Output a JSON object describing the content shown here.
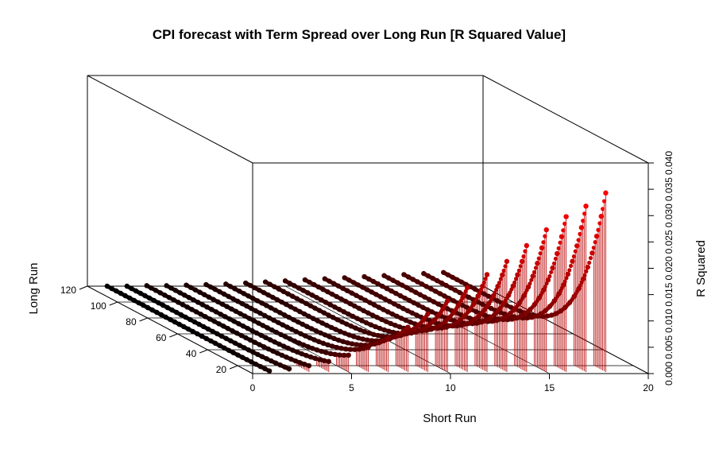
{
  "chart_data": {
    "type": "scatter3d",
    "title": "CPI forecast with Term Spread over Long Run [R Squared Value]",
    "xlabel": "Short Run",
    "ylabel": "Long Run",
    "zlabel": "R Squared",
    "xlim": [
      0,
      20
    ],
    "ylim": [
      10,
      120
    ],
    "zlim": [
      0,
      0.04
    ],
    "x_ticks": [
      "0",
      "5",
      "10",
      "15",
      "20"
    ],
    "y_ticks": [
      "20",
      "40",
      "60",
      "80",
      "100",
      "120"
    ],
    "z_ticks": [
      "0.000",
      "0.005",
      "0.010",
      "0.015",
      "0.020",
      "0.025",
      "0.030",
      "0.035",
      "0.040"
    ],
    "short_run_values": [
      1,
      2,
      3,
      4,
      5,
      6,
      7,
      8,
      9,
      10,
      11,
      12,
      13,
      14,
      15,
      16,
      17,
      18
    ],
    "long_run_range": [
      12,
      120
    ],
    "r_squared_at_long_run_12": [
      0.0002,
      0.0006,
      0.0012,
      0.002,
      0.0032,
      0.0047,
      0.0064,
      0.0085,
      0.011,
      0.0135,
      0.016,
      0.0185,
      0.021,
      0.024,
      0.027,
      0.0295,
      0.0315,
      0.034
    ],
    "r_squared_at_long_run_120": [
      0.0,
      0.0,
      0.0001,
      0.0001,
      0.0002,
      0.0003,
      0.0004,
      0.0006,
      0.0008,
      0.001,
      0.0012,
      0.0014,
      0.0016,
      0.0018,
      0.002,
      0.0022,
      0.0024,
      0.0026
    ],
    "color_low": "#000000",
    "color_high": "#ff0000",
    "stem_color": "#b40000",
    "grid": true
  }
}
